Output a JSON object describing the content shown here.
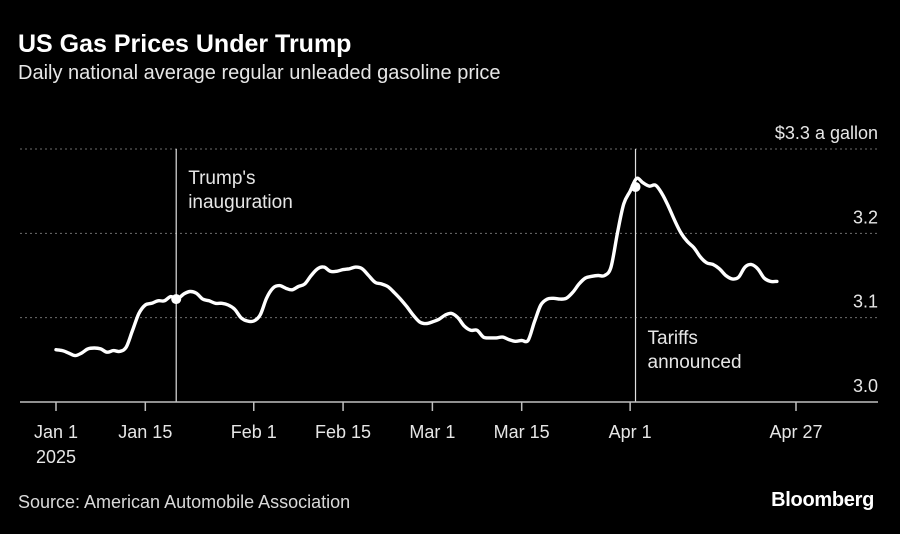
{
  "chart_data": {
    "type": "line",
    "title": "US Gas Prices Under Trump",
    "subtitle": "Daily national average regular unleaded gasoline price",
    "ylim": [
      3.0,
      3.3
    ],
    "y_ticks": [
      {
        "value": 3.0,
        "label": "3.0"
      },
      {
        "value": 3.1,
        "label": "3.1"
      },
      {
        "value": 3.2,
        "label": "3.2"
      },
      {
        "value": 3.3,
        "label": "$3.3 a gallon"
      }
    ],
    "x_ticks": [
      {
        "date": "2025-01-01",
        "label": "Jan 1",
        "sublabel": "2025"
      },
      {
        "date": "2025-01-15",
        "label": "Jan 15"
      },
      {
        "date": "2025-02-01",
        "label": "Feb 1"
      },
      {
        "date": "2025-02-15",
        "label": "Feb 15"
      },
      {
        "date": "2025-03-01",
        "label": "Mar 1"
      },
      {
        "date": "2025-03-15",
        "label": "Mar 15"
      },
      {
        "date": "2025-04-01",
        "label": "Apr 1"
      },
      {
        "date": "2025-04-27",
        "label": "Apr 27"
      }
    ],
    "series": [
      {
        "points": [
          [
            "2025-01-01",
            3.062
          ],
          [
            "2025-01-02",
            3.061
          ],
          [
            "2025-01-03",
            3.058
          ],
          [
            "2025-01-04",
            3.055
          ],
          [
            "2025-01-05",
            3.058
          ],
          [
            "2025-01-06",
            3.063
          ],
          [
            "2025-01-07",
            3.064
          ],
          [
            "2025-01-08",
            3.063
          ],
          [
            "2025-01-09",
            3.059
          ],
          [
            "2025-01-10",
            3.061
          ],
          [
            "2025-01-11",
            3.06
          ],
          [
            "2025-01-12",
            3.065
          ],
          [
            "2025-01-13",
            3.085
          ],
          [
            "2025-01-14",
            3.105
          ],
          [
            "2025-01-15",
            3.115
          ],
          [
            "2025-01-16",
            3.117
          ],
          [
            "2025-01-17",
            3.12
          ],
          [
            "2025-01-18",
            3.12
          ],
          [
            "2025-01-19",
            3.125
          ],
          [
            "2025-01-20",
            3.122
          ],
          [
            "2025-01-21",
            3.128
          ],
          [
            "2025-01-22",
            3.131
          ],
          [
            "2025-01-23",
            3.129
          ],
          [
            "2025-01-24",
            3.122
          ],
          [
            "2025-01-25",
            3.12
          ],
          [
            "2025-01-26",
            3.117
          ],
          [
            "2025-01-27",
            3.117
          ],
          [
            "2025-01-28",
            3.115
          ],
          [
            "2025-01-29",
            3.11
          ],
          [
            "2025-01-30",
            3.1
          ],
          [
            "2025-01-31",
            3.096
          ],
          [
            "2025-02-01",
            3.096
          ],
          [
            "2025-02-02",
            3.103
          ],
          [
            "2025-02-03",
            3.123
          ],
          [
            "2025-02-04",
            3.135
          ],
          [
            "2025-02-05",
            3.138
          ],
          [
            "2025-02-06",
            3.135
          ],
          [
            "2025-02-07",
            3.133
          ],
          [
            "2025-02-08",
            3.137
          ],
          [
            "2025-02-09",
            3.14
          ],
          [
            "2025-02-10",
            3.15
          ],
          [
            "2025-02-11",
            3.158
          ],
          [
            "2025-02-12",
            3.16
          ],
          [
            "2025-02-13",
            3.155
          ],
          [
            "2025-02-14",
            3.155
          ],
          [
            "2025-02-15",
            3.157
          ],
          [
            "2025-02-16",
            3.158
          ],
          [
            "2025-02-17",
            3.16
          ],
          [
            "2025-02-18",
            3.158
          ],
          [
            "2025-02-19",
            3.15
          ],
          [
            "2025-02-20",
            3.142
          ],
          [
            "2025-02-21",
            3.14
          ],
          [
            "2025-02-22",
            3.137
          ],
          [
            "2025-02-23",
            3.13
          ],
          [
            "2025-02-24",
            3.122
          ],
          [
            "2025-02-25",
            3.113
          ],
          [
            "2025-02-26",
            3.103
          ],
          [
            "2025-02-27",
            3.095
          ],
          [
            "2025-02-28",
            3.093
          ],
          [
            "2025-03-01",
            3.095
          ],
          [
            "2025-03-02",
            3.098
          ],
          [
            "2025-03-03",
            3.103
          ],
          [
            "2025-03-04",
            3.105
          ],
          [
            "2025-03-05",
            3.1
          ],
          [
            "2025-03-06",
            3.09
          ],
          [
            "2025-03-07",
            3.085
          ],
          [
            "2025-03-08",
            3.085
          ],
          [
            "2025-03-09",
            3.077
          ],
          [
            "2025-03-10",
            3.076
          ],
          [
            "2025-03-11",
            3.076
          ],
          [
            "2025-03-12",
            3.077
          ],
          [
            "2025-03-13",
            3.074
          ],
          [
            "2025-03-14",
            3.072
          ],
          [
            "2025-03-15",
            3.073
          ],
          [
            "2025-03-16",
            3.073
          ],
          [
            "2025-03-17",
            3.095
          ],
          [
            "2025-03-18",
            3.115
          ],
          [
            "2025-03-19",
            3.122
          ],
          [
            "2025-03-20",
            3.123
          ],
          [
            "2025-03-21",
            3.122
          ],
          [
            "2025-03-22",
            3.123
          ],
          [
            "2025-03-23",
            3.13
          ],
          [
            "2025-03-24",
            3.14
          ],
          [
            "2025-03-25",
            3.147
          ],
          [
            "2025-03-26",
            3.149
          ],
          [
            "2025-03-27",
            3.15
          ],
          [
            "2025-03-28",
            3.15
          ],
          [
            "2025-03-29",
            3.16
          ],
          [
            "2025-03-30",
            3.2
          ],
          [
            "2025-03-31",
            3.235
          ],
          [
            "2025-04-01",
            3.25
          ],
          [
            "2025-04-02",
            3.265
          ],
          [
            "2025-04-03",
            3.26
          ],
          [
            "2025-04-04",
            3.256
          ],
          [
            "2025-04-05",
            3.257
          ],
          [
            "2025-04-06",
            3.247
          ],
          [
            "2025-04-07",
            3.232
          ],
          [
            "2025-04-08",
            3.215
          ],
          [
            "2025-04-09",
            3.2
          ],
          [
            "2025-04-10",
            3.19
          ],
          [
            "2025-04-11",
            3.183
          ],
          [
            "2025-04-12",
            3.172
          ],
          [
            "2025-04-13",
            3.165
          ],
          [
            "2025-04-14",
            3.163
          ],
          [
            "2025-04-15",
            3.158
          ],
          [
            "2025-04-16",
            3.15
          ],
          [
            "2025-04-17",
            3.146
          ],
          [
            "2025-04-18",
            3.148
          ],
          [
            "2025-04-19",
            3.16
          ],
          [
            "2025-04-20",
            3.163
          ],
          [
            "2025-04-21",
            3.158
          ],
          [
            "2025-04-22",
            3.147
          ],
          [
            "2025-04-23",
            3.143
          ],
          [
            "2025-04-24",
            3.143
          ]
        ]
      }
    ],
    "annotations": [
      {
        "date": "2025-01-20",
        "value": 3.122,
        "lines": [
          "Trump's",
          "inauguration"
        ],
        "label_position": "top-right"
      },
      {
        "date": "2025-04-02",
        "value": 3.255,
        "lines": [
          "Tariffs",
          "announced"
        ],
        "label_position": "bottom-right"
      }
    ],
    "grid": "dotted horizontal",
    "colors": {
      "background": "#000000",
      "line": "#ffffff",
      "grid": "#6e6e6e",
      "axis": "#bfbfbf",
      "text": "#e6e6e6"
    }
  },
  "source": "Source: American Automobile Association",
  "brand": "Bloomberg"
}
